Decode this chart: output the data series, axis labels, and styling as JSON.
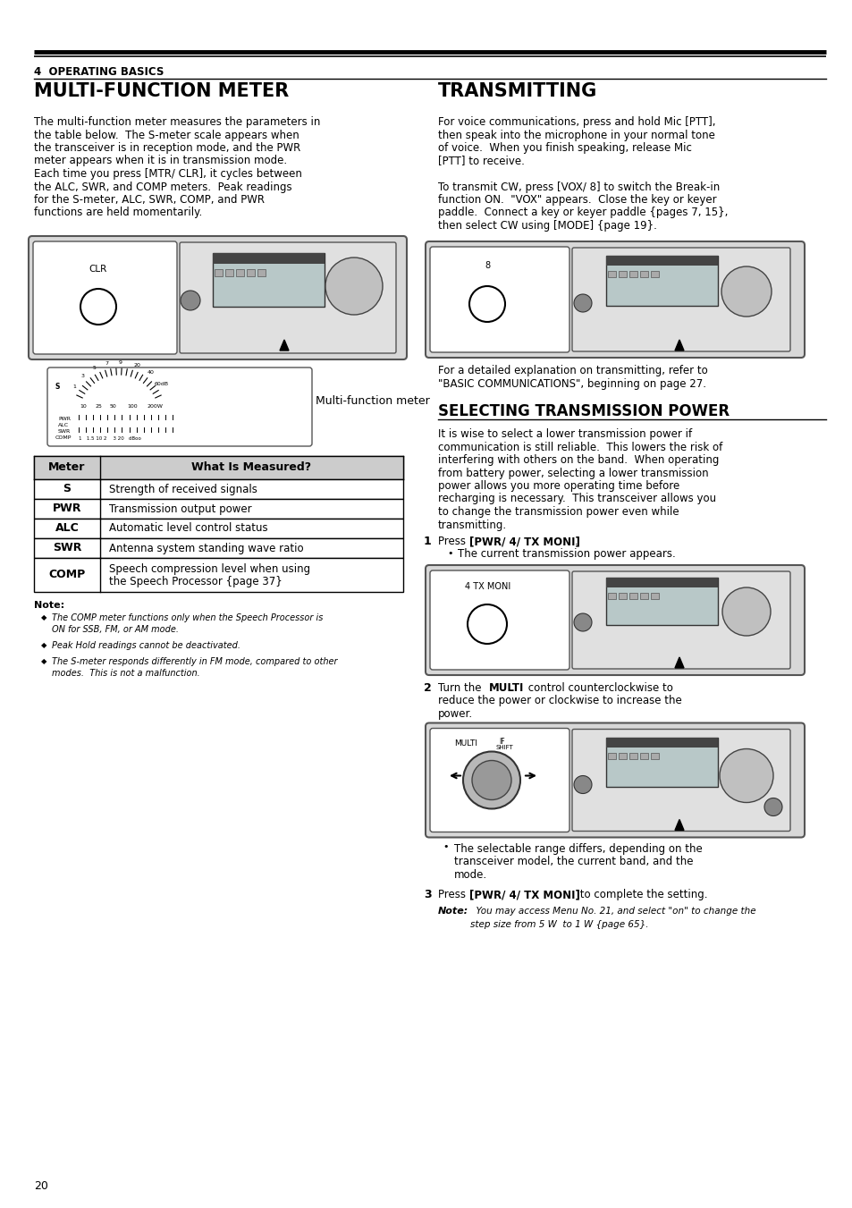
{
  "page_number": "20",
  "chapter": "4  OPERATING BASICS",
  "section_left": "MULTI-FUNCTION METER",
  "section_right": "TRANSMITTING",
  "section_right2": "SELECTING TRANSMISSION POWER",
  "bg_color": "#ffffff",
  "body_left": [
    "The multi-function meter measures the parameters in",
    "the table below.  The S-meter scale appears when",
    "the transceiver is in reception mode, and the PWR",
    "meter appears when it is in transmission mode.",
    "Each time you press [MTR/ CLR], it cycles between",
    "the ALC, SWR, and COMP meters.  Peak readings",
    "for the S-meter, ALC, SWR, COMP, and PWR",
    "functions are held momentarily."
  ],
  "body_right_transmitting": [
    "For voice communications, press and hold Mic [PTT],",
    "then speak into the microphone in your normal tone",
    "of voice.  When you finish speaking, release Mic",
    "[PTT] to receive.",
    "",
    "To transmit CW, press [VOX/ 8] to switch the Break-in",
    "function ON.  \"VOX\" appears.  Close the key or keyer",
    "paddle.  Connect a key or keyer paddle {pages 7, 15},",
    "then select CW using [MODE] {page 19}."
  ],
  "transmitting_note_line1": "For a detailed explanation on transmitting, refer to",
  "transmitting_note_line2": "\"BASIC COMMUNICATIONS\", beginning on page 27.",
  "selecting_power_body": [
    "It is wise to select a lower transmission power if",
    "communication is still reliable.  This lowers the risk of",
    "interfering with others on the band.  When operating",
    "from battery power, selecting a lower transmission",
    "power allows you more operating time before",
    "recharging is necessary.  This transceiver allows you",
    "to change the transmission power even while",
    "transmitting."
  ],
  "step1_note": "The current transmission power appears.",
  "selectable_range_note": [
    "The selectable range differs, depending on the",
    "transceiver model, the current band, and the",
    "mode."
  ],
  "note_label": "Note:",
  "note_bullets": [
    [
      "The COMP meter functions only when the Speech Processor is",
      "ON for SSB, FM, or AM mode."
    ],
    [
      "Peak Hold readings cannot be deactivated."
    ],
    [
      "The S-meter responds differently in FM mode, compared to other",
      "modes.  This is not a malfunction."
    ]
  ],
  "table_headers": [
    "Meter",
    "What Is Measured?"
  ],
  "table_rows": [
    [
      "S",
      [
        "Strength of received signals"
      ]
    ],
    [
      "PWR",
      [
        "Transmission output power"
      ]
    ],
    [
      "ALC",
      [
        "Automatic level control status"
      ]
    ],
    [
      "SWR",
      [
        "Antenna system standing wave ratio"
      ]
    ],
    [
      "COMP",
      [
        "Speech compression level when using",
        "the Speech Processor {page 37}"
      ]
    ]
  ],
  "meter_label": "Multi-function meter"
}
